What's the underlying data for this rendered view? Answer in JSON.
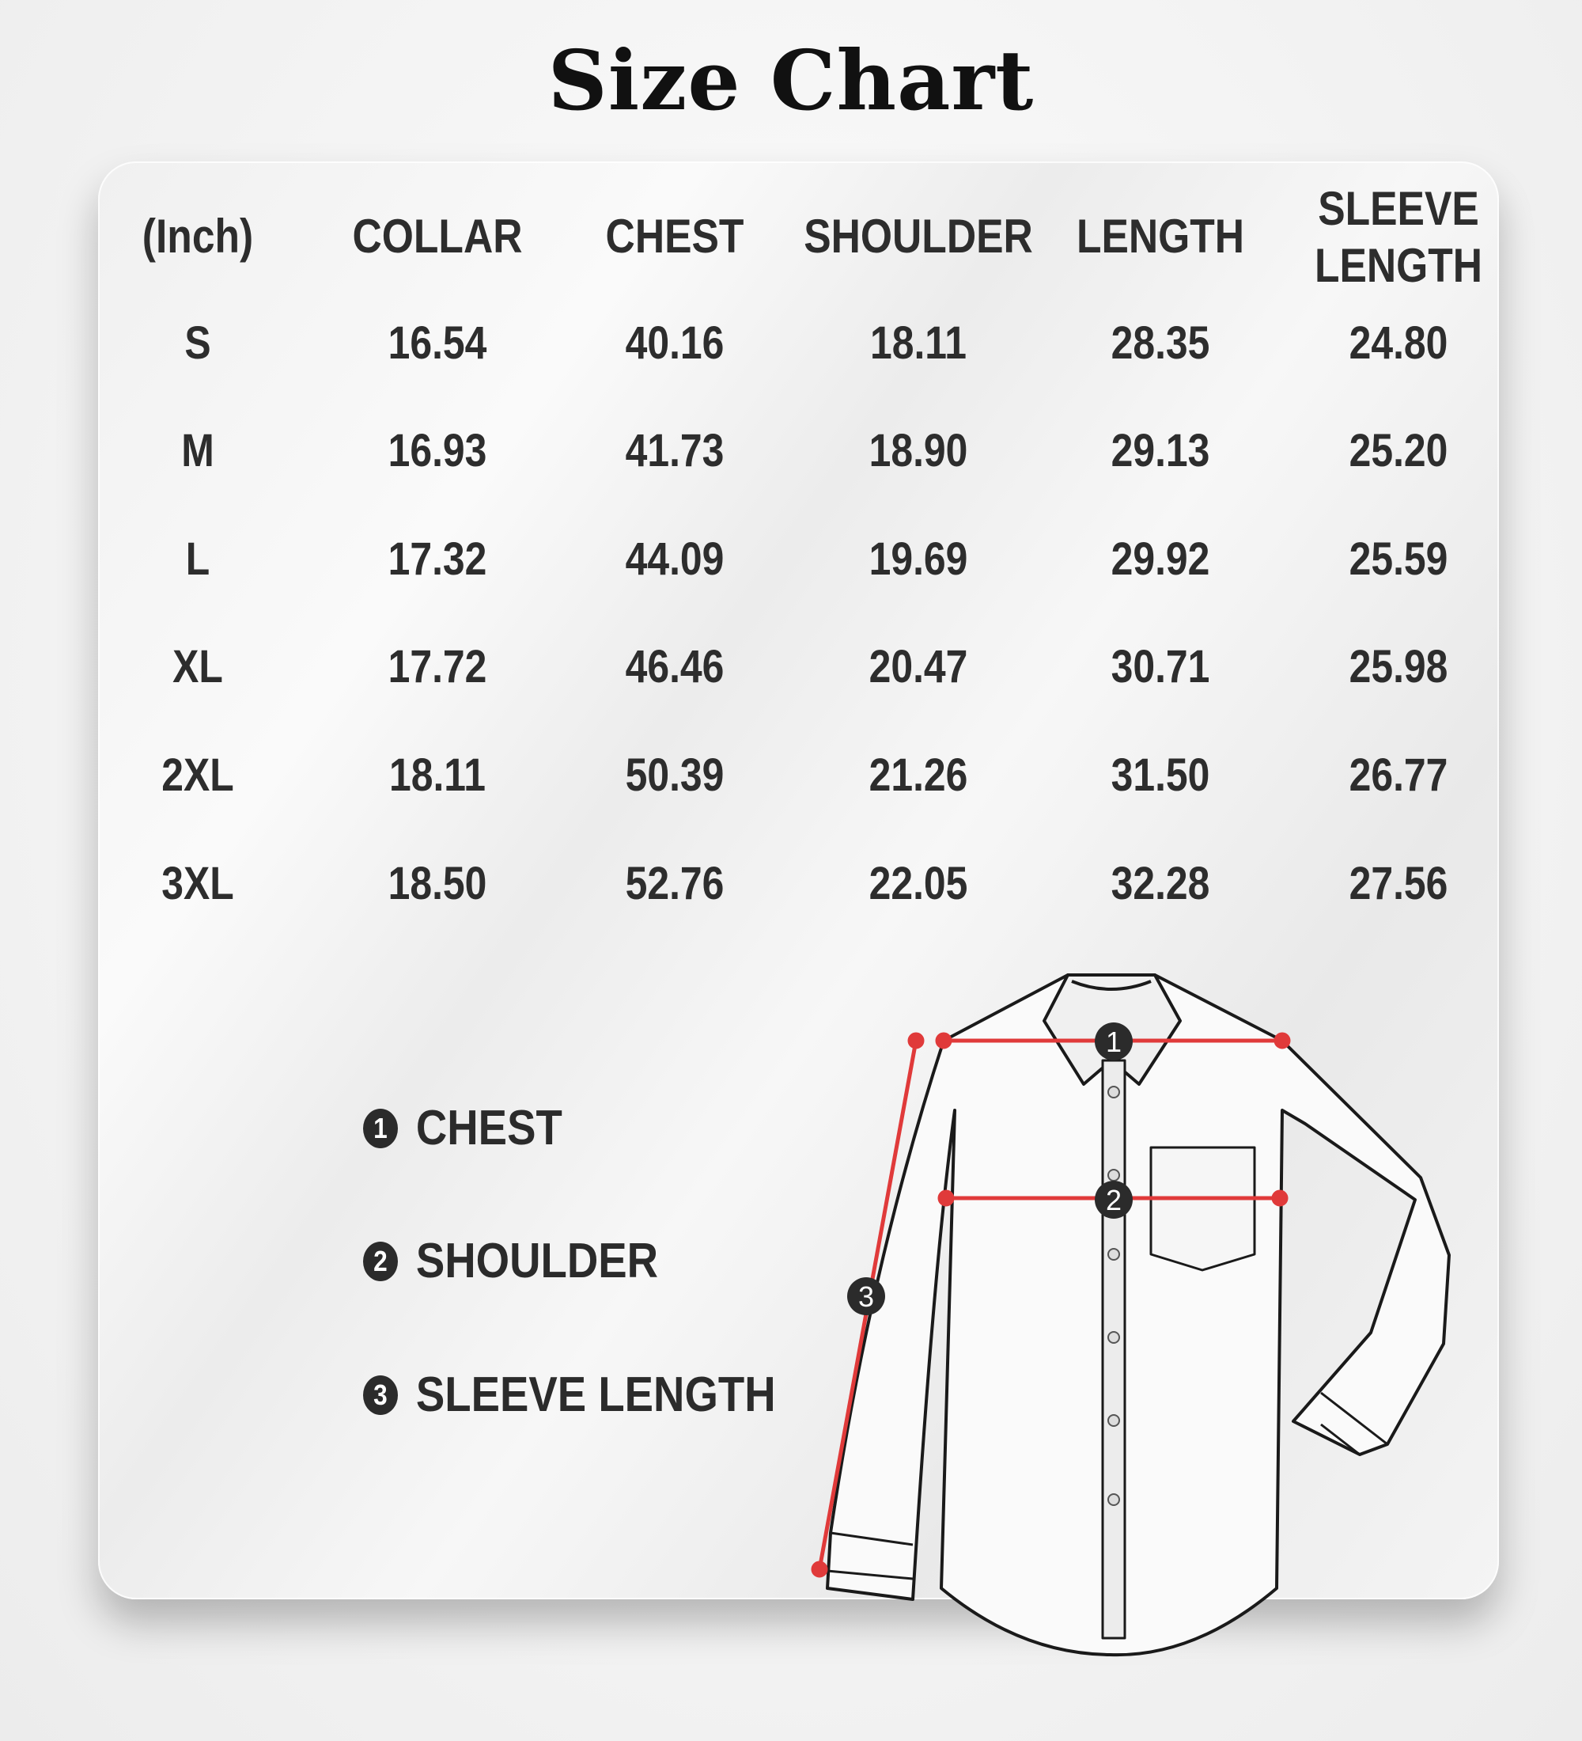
{
  "title": "Size Chart",
  "table": {
    "headers": [
      "(Inch)",
      "COLLAR",
      "CHEST",
      "SHOULDER",
      "LENGTH",
      "SLEEVE LENGTH"
    ],
    "sleeve_header_lines": [
      "SLEEVE",
      "LENGTH"
    ],
    "rows": [
      [
        "S",
        "16.54",
        "40.16",
        "18.11",
        "28.35",
        "24.80"
      ],
      [
        "M",
        "16.93",
        "41.73",
        "18.90",
        "29.13",
        "25.20"
      ],
      [
        "L",
        "17.32",
        "44.09",
        "19.69",
        "29.92",
        "25.59"
      ],
      [
        "XL",
        "17.72",
        "46.46",
        "20.47",
        "30.71",
        "25.98"
      ],
      [
        "2XL",
        "18.11",
        "50.39",
        "21.26",
        "31.50",
        "26.77"
      ],
      [
        "3XL",
        "18.50",
        "52.76",
        "22.05",
        "32.28",
        "27.56"
      ]
    ]
  },
  "legend": [
    {
      "num": "1",
      "label": "CHEST"
    },
    {
      "num": "2",
      "label": "SHOULDER"
    },
    {
      "num": "3",
      "label": "SLEEVE LENGTH"
    }
  ],
  "diagram": {
    "markers": [
      "1",
      "2",
      "3"
    ],
    "measure_color": "#e03a3a",
    "icon": "shirt-illustration"
  }
}
